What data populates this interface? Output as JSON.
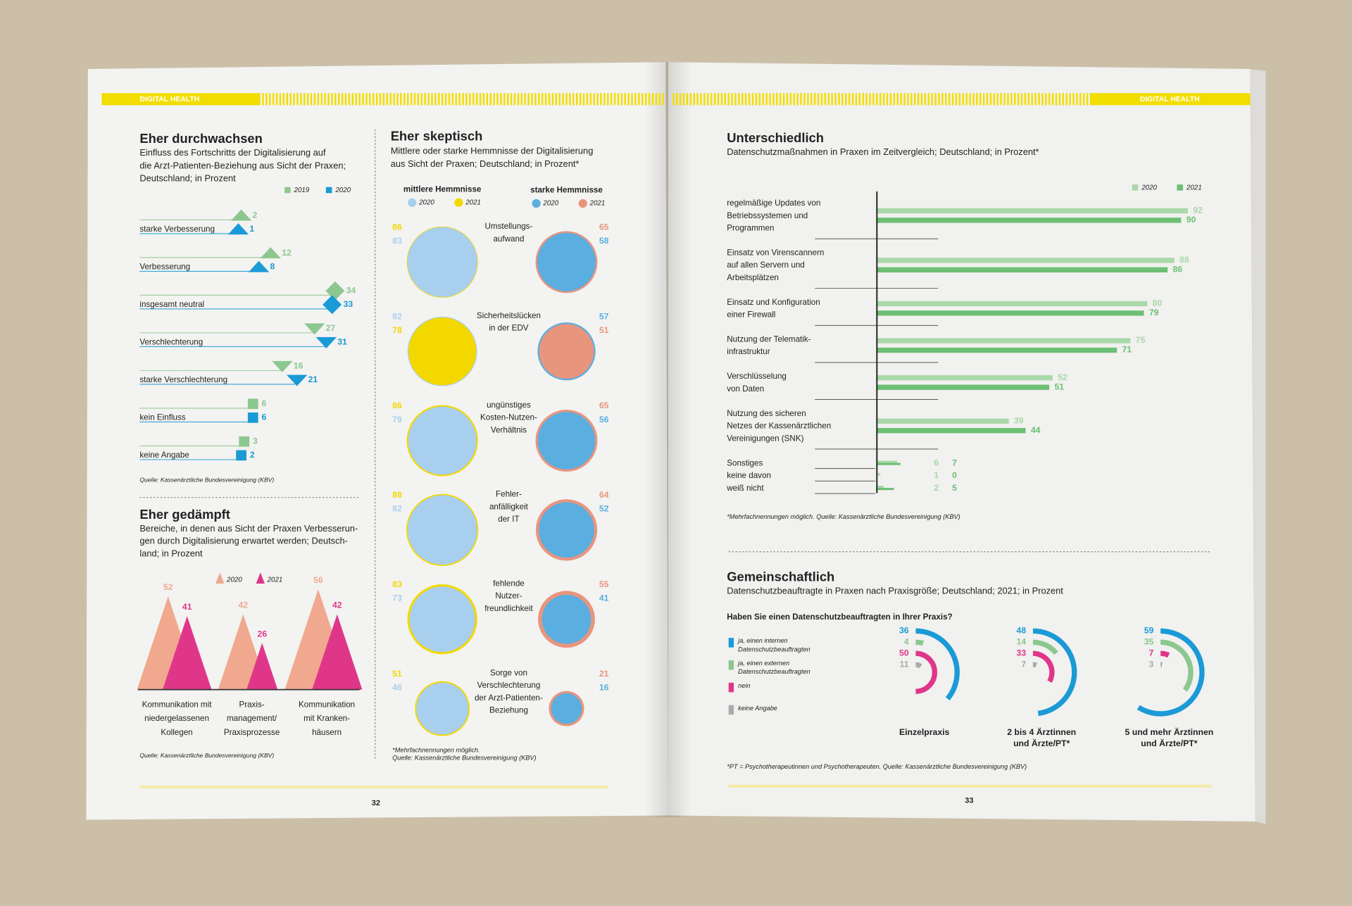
{
  "pages": [
    {
      "header": "DIGITAL HEALTH",
      "page_number": 32
    },
    {
      "header": "DIGITAL HEALTH",
      "page_number": 33
    }
  ],
  "chart_data": [
    {
      "type": "dotline",
      "title": "Eher durchwachsen",
      "subtitle": "Einfluss des Fortschritts der Digitalisierung auf\ndie Arzt-Patienten-Beziehung aus Sicht der Praxen;\nDeutschland; in Prozent",
      "categories": [
        "starke Verbesserung",
        "Verbesserung",
        "insgesamt neutral",
        "Verschlechterung",
        "starke Verschlechterung",
        "kein Einfluss",
        "keine Angabe"
      ],
      "markers": [
        "triangle-up",
        "triangle-up",
        "diamond",
        "triangle-down",
        "triangle-down",
        "square",
        "square"
      ],
      "series": [
        {
          "name": "2019",
          "color": "#8cc78f",
          "values": [
            2,
            12,
            34,
            27,
            16,
            6,
            3
          ]
        },
        {
          "name": "2020",
          "color": "#1a9ad6",
          "values": [
            1,
            8,
            33,
            31,
            21,
            6,
            2
          ]
        }
      ],
      "source": "Quelle: Kassenärztliche Bundesvereinigung (KBV)"
    },
    {
      "type": "triangle",
      "title": "Eher gedämpft",
      "subtitle": "Bereiche, in denen aus Sicht der Praxen Verbesserun-\ngen durch Digitalisierung erwartet werden; Deutsch-\nland; in Prozent",
      "categories": [
        "Kommunikation mit\nniedergelassenen\nKollegen",
        "Praxis-\nmanagement/\nPraxisprozesse",
        "Kommunikation\nmit Kranken-\nhäusern"
      ],
      "series": [
        {
          "name": "2020",
          "color": "#f0a98f",
          "values": [
            52,
            42,
            56
          ]
        },
        {
          "name": "2021",
          "color": "#e0368a",
          "values": [
            41,
            26,
            42
          ]
        }
      ],
      "source": "Quelle: Kassenärztliche Bundesvereinigung (KBV)"
    },
    {
      "type": "circle",
      "title": "Eher skeptisch",
      "subtitle": "Mittlere oder starke Hemmnisse der Digitalisierung\naus Sicht der Praxen; Deutschland; in Prozent*",
      "categories": [
        "Umstellungs-\naufwand",
        "Sicherheitslücken\nin der EDV",
        "ungünstiges\nKosten-Nutzen-\nVerhältnis",
        "Fehler-\nanfälligkeit\nder IT",
        "fehlende\nNutzer-\nfreundlichkeit",
        "Sorge von\nVerschlechterung\nder Arzt-Patienten-\nBeziehung"
      ],
      "groups": [
        {
          "name": "mittlere Hemmnisse",
          "series": [
            {
              "name": "2020",
              "color": "#a9cfee",
              "values": [
                83,
                82,
                79,
                82,
                73,
                46
              ]
            },
            {
              "name": "2021",
              "color": "#f3d800",
              "values": [
                86,
                78,
                86,
                88,
                83,
                51
              ]
            }
          ]
        },
        {
          "name": "starke Hemmnisse",
          "series": [
            {
              "name": "2020",
              "color": "#5aaee0",
              "values": [
                58,
                57,
                56,
                52,
                41,
                16
              ]
            },
            {
              "name": "2021",
              "color": "#e8957e",
              "values": [
                65,
                51,
                65,
                64,
                55,
                21
              ]
            }
          ]
        }
      ],
      "footnote": "*Mehrfachnennungen möglich.\nQuelle: Kassenärztliche Bundesvereinigung (KBV)"
    },
    {
      "type": "hbar",
      "title": "Unterschiedlich",
      "subtitle": "Datenschutzmaßnahmen in Praxen im Zeitvergleich; Deutschland; in Prozent*",
      "categories": [
        "regelmäßige Updates von\nBetriebssystemen und\nProgrammen",
        "Einsatz von Virenscannern\nauf allen Servern und\nArbeitsplätzen",
        "Einsatz und Konfiguration\neiner Firewall",
        "Nutzung der Telematik-\ninfrastruktur",
        "Verschlüsselung\nvon Daten",
        "Nutzung des sicheren\nNetzes der Kassenärztlichen\nVereinigungen (SNK)",
        "Sonstiges",
        "keine davon",
        "weiß nicht"
      ],
      "series": [
        {
          "name": "2020",
          "color": "#a9d8a9",
          "values": [
            92,
            88,
            80,
            75,
            52,
            39,
            6,
            1,
            2
          ]
        },
        {
          "name": "2021",
          "color": "#6cbf73",
          "values": [
            90,
            86,
            79,
            71,
            51,
            44,
            7,
            0,
            5
          ]
        }
      ],
      "footnote": "*Mehrfachnennungen möglich. Quelle: Kassenärztliche Bundesvereinigung (KBV)"
    },
    {
      "type": "radial",
      "title": "Gemeinschaftlich",
      "subtitle": "Datenschutzbeauftragte in Praxen nach Praxisgröße; Deutschland; 2021; in Prozent",
      "question": "Haben Sie einen Datenschutzbeauftragten in Ihrer Praxis?",
      "categories": [
        "Einzelpraxis",
        "2 bis 4 Ärztinnen\nund Ärzte/PT*",
        "5 und mehr Ärztinnen\nund Ärzte/PT*"
      ],
      "series": [
        {
          "name": "ja, einen internen\nDatenschutzbeauftragten",
          "color": "#1a9ad6",
          "values": [
            36,
            48,
            59
          ]
        },
        {
          "name": "ja, einen externen\nDatenschutzbeauftragten",
          "color": "#8cc78f",
          "values": [
            4,
            14,
            35
          ]
        },
        {
          "name": "nein",
          "color": "#e0368a",
          "values": [
            50,
            33,
            7
          ]
        },
        {
          "name": "keine Angabe",
          "color": "#aaaaaa",
          "values": [
            11,
            7,
            3
          ]
        }
      ],
      "footnote": "*PT = Psychotherapeutinnen und Psychotherapeuten. Quelle: Kassenärztliche Bundesvereinigung (KBV)"
    }
  ]
}
